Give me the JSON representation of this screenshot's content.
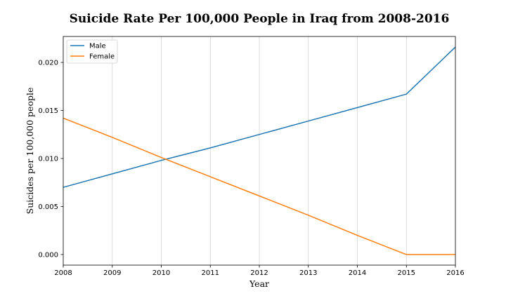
{
  "chart_data": {
    "type": "line",
    "title": "Suicide Rate Per 100,000 People in Iraq from 2008-2016",
    "xlabel": "Year",
    "ylabel": "Suicides per 100,000 people",
    "x": [
      2008,
      2009,
      2010,
      2011,
      2012,
      2013,
      2014,
      2015,
      2016
    ],
    "x_tick_labels": [
      "2008",
      "2009",
      "2010",
      "2011",
      "2012",
      "2013",
      "2014",
      "2015",
      "2016"
    ],
    "y_ticks": [
      0.0,
      0.005,
      0.01,
      0.015,
      0.02
    ],
    "y_tick_labels": [
      "0.000",
      "0.005",
      "0.010",
      "0.015",
      "0.020"
    ],
    "xlim": [
      2008,
      2016
    ],
    "ylim": [
      -0.0011,
      0.0227
    ],
    "grid": "vertical",
    "legend": "top-left",
    "series": [
      {
        "name": "Male",
        "color": "#1f77b4",
        "values": [
          0.007,
          0.0084,
          0.0098,
          0.0111,
          0.0125,
          0.0139,
          0.0153,
          0.0167,
          0.0216
        ]
      },
      {
        "name": "Female",
        "color": "#ff7f0e",
        "values": [
          0.0142,
          0.0122,
          0.0101,
          0.0081,
          0.0061,
          0.0041,
          0.002,
          0.0,
          0.0
        ]
      }
    ]
  }
}
